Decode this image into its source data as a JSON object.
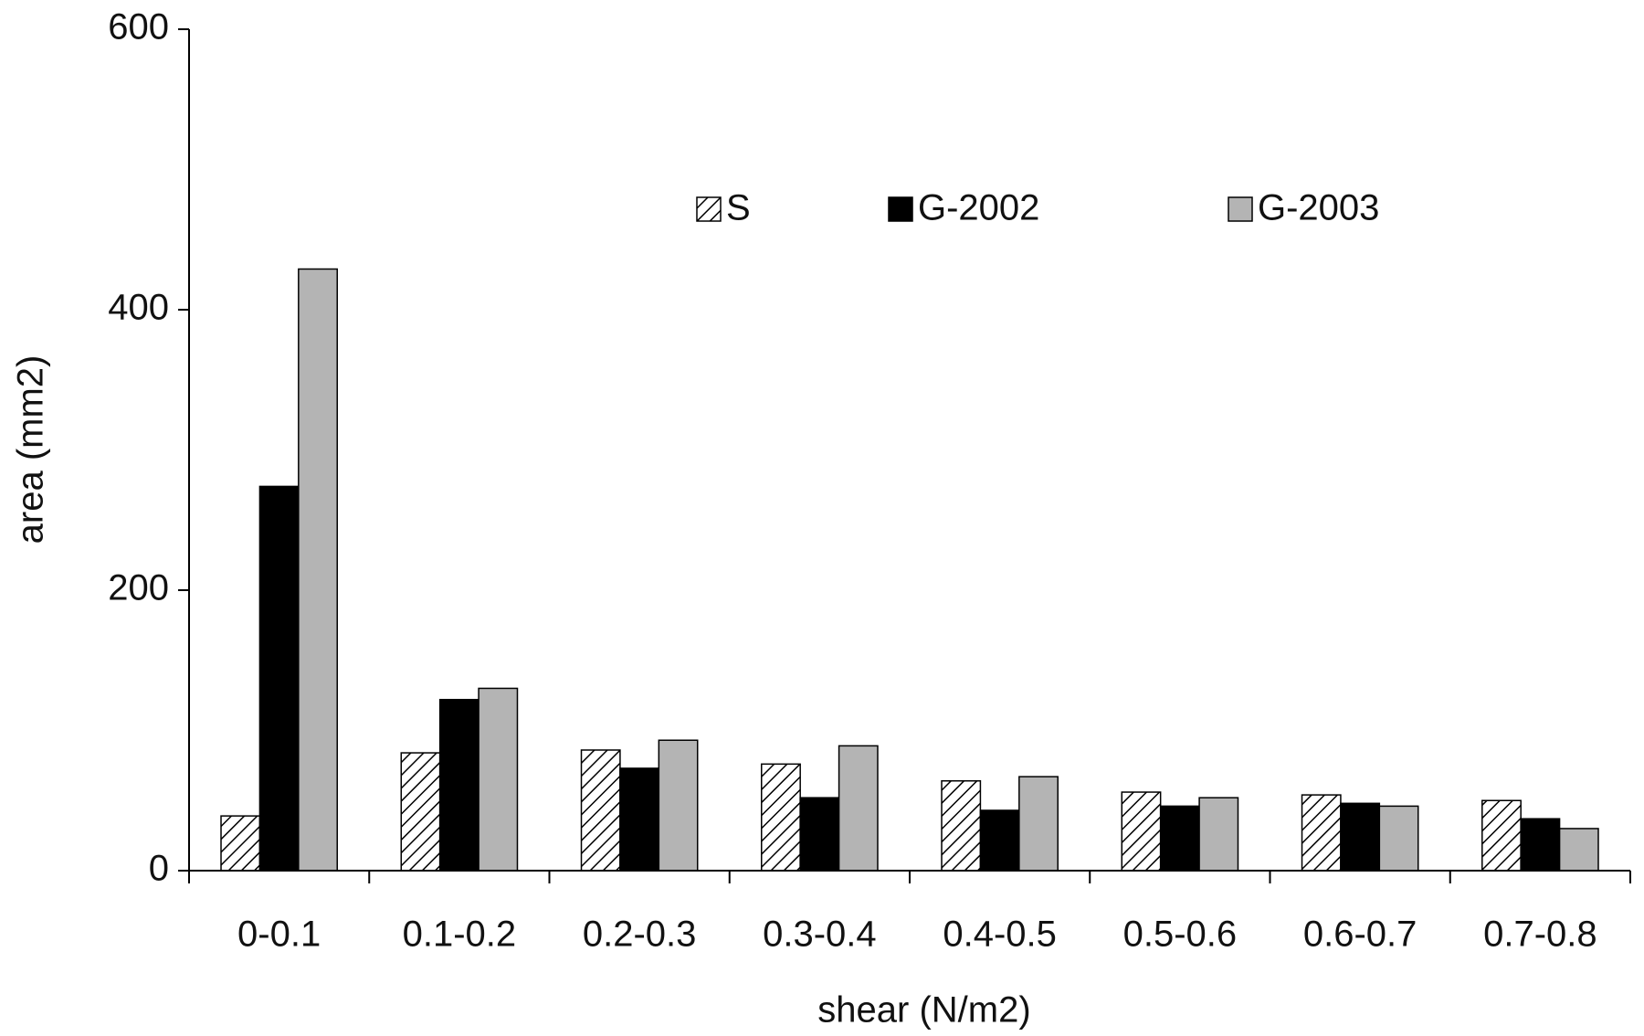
{
  "chart_data": {
    "type": "bar",
    "x_label": "shear (N/m2)",
    "y_label": "area (mm2)",
    "categories": [
      "0-0.1",
      "0.1-0.2",
      "0.2-0.3",
      "0.3-0.4",
      "0.4-0.5",
      "0.5-0.6",
      "0.6-0.7",
      "0.7-0.8"
    ],
    "series": [
      {
        "name": "S",
        "color": "#ffffff",
        "hatch": true,
        "values": [
          39,
          84,
          86,
          76,
          64,
          56,
          54,
          50
        ]
      },
      {
        "name": "G-2002",
        "color": "#000000",
        "values": [
          274,
          122,
          73,
          52,
          43,
          46,
          48,
          37
        ]
      },
      {
        "name": "G-2003",
        "color": "#b4b4b4",
        "values": [
          429,
          130,
          93,
          89,
          67,
          52,
          46,
          30
        ]
      }
    ],
    "ylim": [
      0,
      600
    ],
    "yticks": [
      0,
      200,
      400,
      600
    ],
    "grid": false
  }
}
